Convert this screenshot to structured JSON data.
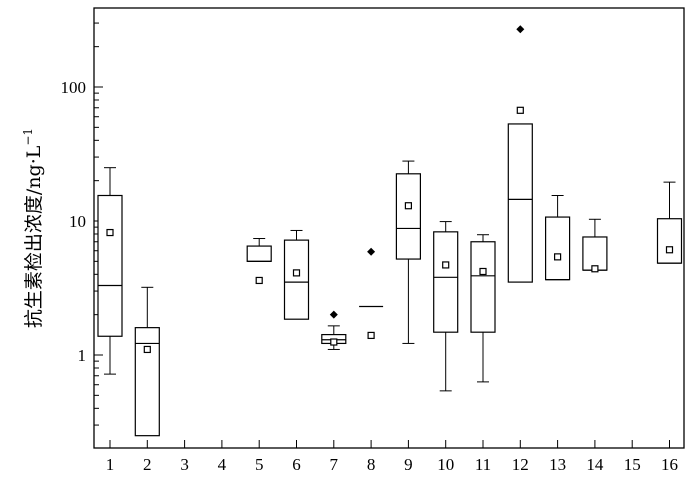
{
  "chart_data": {
    "type": "box",
    "ylabel": "抗生素检出浓度/ng·L",
    "ylabel_sup": "−1",
    "yscale": "log",
    "ylim": [
      0.2,
      400
    ],
    "y_ticks": [
      1,
      10,
      100
    ],
    "y_tick_labels": [
      "1",
      "10",
      "100"
    ],
    "categories": [
      "1",
      "2",
      "3",
      "4",
      "5",
      "6",
      "7",
      "8",
      "9",
      "10",
      "11",
      "12",
      "13",
      "14",
      "15",
      "16"
    ],
    "boxes": [
      {
        "category": "1",
        "min": 0.72,
        "q1": 1.38,
        "median": 3.3,
        "q3": 15.5,
        "max": 25,
        "mean": 8.2
      },
      {
        "category": "2",
        "min": null,
        "q1": 0.25,
        "median": 1.22,
        "q3": 1.6,
        "max": 3.2,
        "mean": 1.1
      },
      {
        "category": "3"
      },
      {
        "category": "4"
      },
      {
        "category": "5",
        "min": null,
        "q1": 5.0,
        "median": 5.0,
        "q3": 6.5,
        "max": 7.4,
        "mean": 3.6
      },
      {
        "category": "6",
        "min": null,
        "q1": 1.85,
        "median": 3.5,
        "q3": 7.2,
        "max": 8.5,
        "mean": 4.1
      },
      {
        "category": "7",
        "min": 1.1,
        "q1": 1.22,
        "median": 1.3,
        "q3": 1.42,
        "max": 1.65,
        "mean": 1.25,
        "outliers": [
          2.0
        ]
      },
      {
        "category": "8",
        "median": 2.3,
        "mean": 1.4,
        "outliers": [
          5.9
        ]
      },
      {
        "category": "9",
        "min": 1.22,
        "q1": 5.2,
        "median": 8.8,
        "q3": 22.5,
        "max": 28,
        "mean": 13
      },
      {
        "category": "10",
        "min": 0.54,
        "q1": 1.48,
        "median": 3.8,
        "q3": 8.3,
        "max": 9.9,
        "mean": 4.7
      },
      {
        "category": "11",
        "min": 0.63,
        "q1": 1.48,
        "median": 3.9,
        "q3": 7.0,
        "max": 7.9,
        "mean": 4.2
      },
      {
        "category": "12",
        "min": null,
        "q1": 3.5,
        "median": 14.5,
        "q3": 53,
        "max": null,
        "mean": 67,
        "outliers": [
          270
        ]
      },
      {
        "category": "13",
        "min": null,
        "q1": 3.65,
        "median": 3.65,
        "q3": 10.7,
        "max": 15.5,
        "mean": 5.4
      },
      {
        "category": "14",
        "min": null,
        "q1": 4.3,
        "median": 4.3,
        "q3": 7.6,
        "max": 10.3,
        "mean": 4.4
      },
      {
        "category": "15"
      },
      {
        "category": "16",
        "min": null,
        "q1": 4.85,
        "median": 4.85,
        "q3": 10.4,
        "max": 19.5,
        "mean": 6.1
      }
    ],
    "grid": false,
    "legend": "none"
  }
}
